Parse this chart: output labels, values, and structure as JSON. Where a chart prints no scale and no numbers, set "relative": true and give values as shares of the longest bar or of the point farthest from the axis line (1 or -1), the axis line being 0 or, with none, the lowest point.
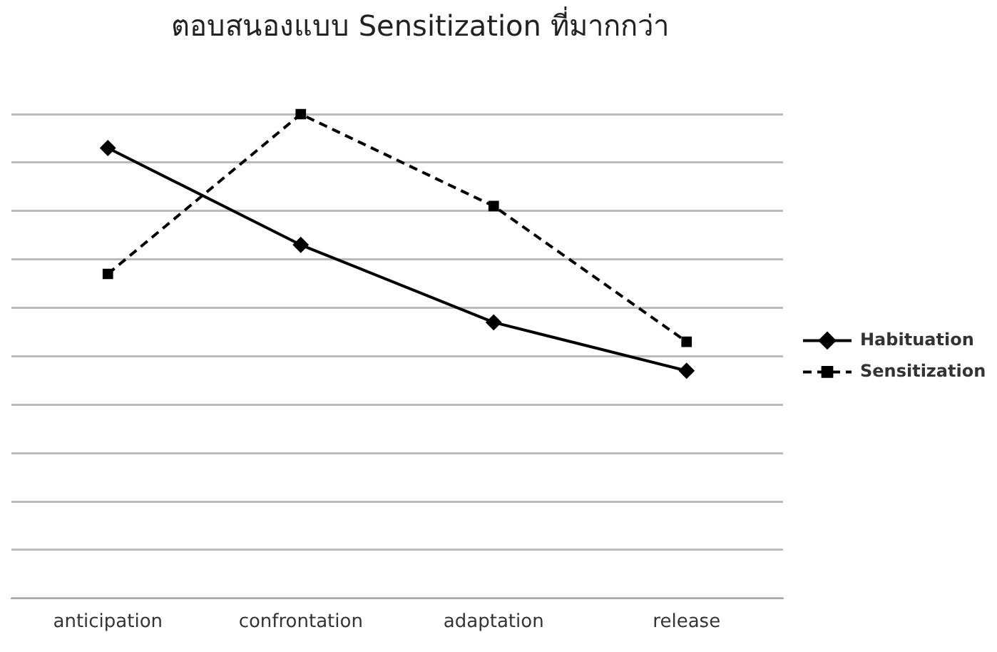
{
  "chart_data": {
    "type": "line",
    "relative": true,
    "annotations": [
      "ตอบสนองแบบ Sensitization ที่มากกว่า"
    ],
    "categories": [
      "anticipation",
      "confrontation",
      "adaptation",
      "release"
    ],
    "series": [
      {
        "name": "Habituation",
        "color": "#000000",
        "values": [
          0.93,
          0.73,
          0.57,
          0.47
        ],
        "marker": "diamond",
        "line_style": "solid"
      },
      {
        "name": "Sensitization",
        "color": "#000000",
        "values": [
          0.67,
          1,
          0.81,
          0.53
        ],
        "marker": "square",
        "line_style": "dashed"
      }
    ],
    "grid": "y",
    "legend": "right"
  }
}
